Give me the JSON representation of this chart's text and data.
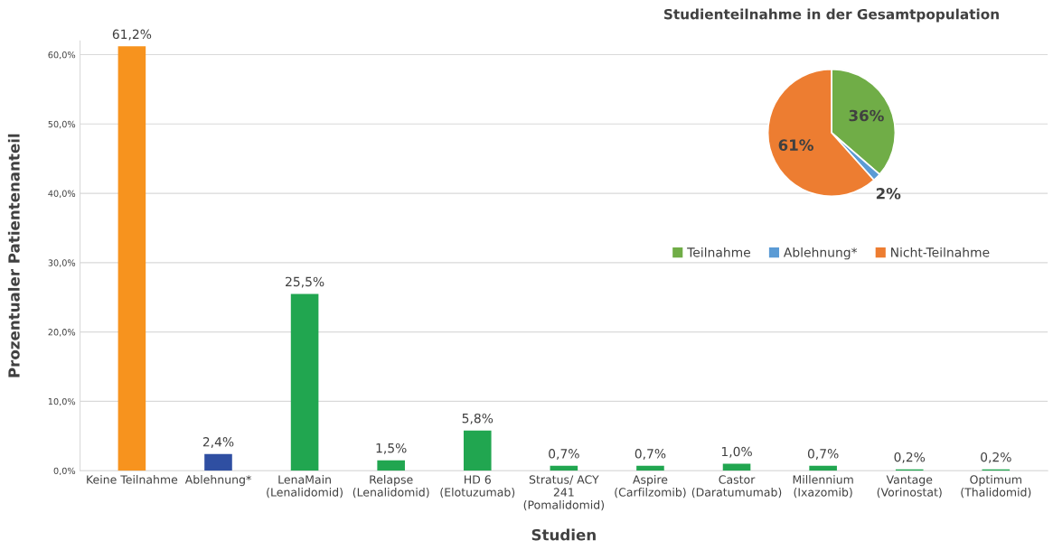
{
  "chart_data": [
    {
      "type": "bar",
      "xlabel": "Studien",
      "ylabel": "Prozentualer Patientenanteil",
      "categories": [
        "Keine Teilnahme",
        "Ablehnung*",
        "LenaMain\n(Lenalidomid)",
        "Relapse\n(Lenalidomid)",
        "HD 6\n(Elotuzumab)",
        "Stratus/ ACY\n241\n(Pomalidomid)",
        "Aspire\n(Carfilzomib)",
        "Castor\n(Daratumumab)",
        "Millennium\n(Ixazomib)",
        "Vantage\n(Vorinostat)",
        "Optimum\n(Thalidomid)"
      ],
      "values": [
        61.2,
        2.4,
        25.5,
        1.5,
        5.8,
        0.7,
        0.7,
        1.0,
        0.7,
        0.2,
        0.2
      ],
      "value_labels": [
        "61,2%",
        "2,4%",
        "25,5%",
        "1,5%",
        "5,8%",
        "0,7%",
        "0,7%",
        "1,0%",
        "0,7%",
        "0,2%",
        "0,2%"
      ],
      "colors": [
        "#f7931e",
        "#2f4fa2",
        "#21a650",
        "#21a650",
        "#21a650",
        "#21a650",
        "#21a650",
        "#21a650",
        "#21a650",
        "#21a650",
        "#21a650"
      ],
      "ylim": [
        0,
        62
      ],
      "yticks": [
        {
          "value": 0,
          "label": "0,0%"
        },
        {
          "value": 10,
          "label": "10,0%"
        },
        {
          "value": 20,
          "label": "20,0%"
        },
        {
          "value": 30,
          "label": "30,0%"
        },
        {
          "value": 40,
          "label": "40,0%"
        },
        {
          "value": 50,
          "label": "50,0%"
        },
        {
          "value": 60,
          "label": "60,0%"
        }
      ],
      "grid": "y"
    },
    {
      "type": "pie",
      "title": "Studienteilnahme in der Gesamtpopulation",
      "categories": [
        "Teilnahme",
        "Ablehnung*",
        "Nicht-Teilnahme"
      ],
      "values": [
        36,
        2,
        61
      ],
      "value_labels": [
        "36%",
        "2%",
        "61%"
      ],
      "colors": [
        "#70ad47",
        "#5b9bd5",
        "#ed7d31"
      ],
      "legend": "bottom"
    }
  ]
}
